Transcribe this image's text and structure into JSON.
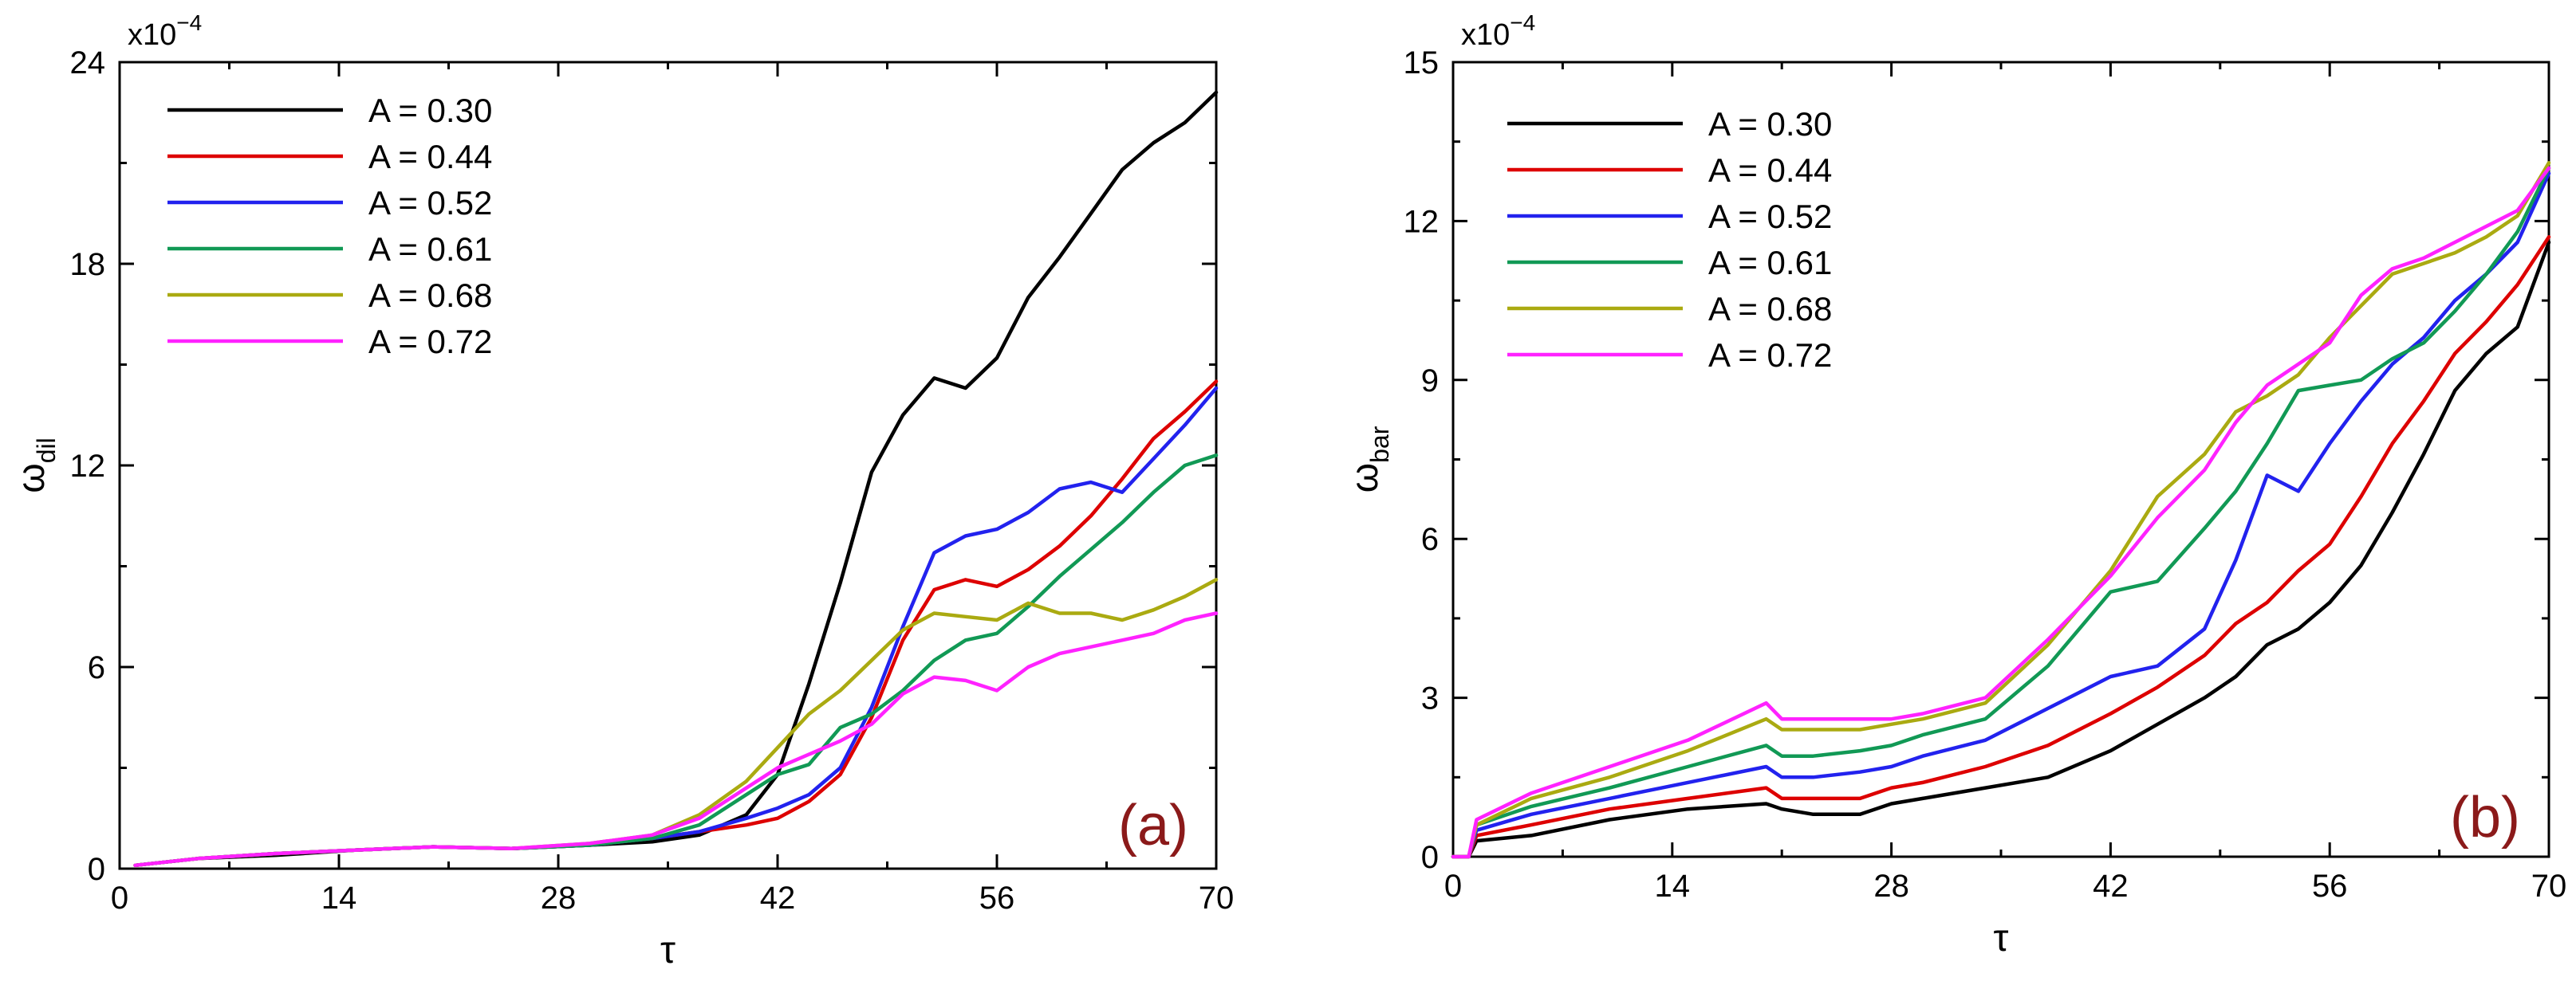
{
  "chart_data": [
    {
      "type": "line",
      "panel_label": "(a)",
      "xlabel": "τ",
      "ylabel_base": "ω",
      "ylabel_sub": "dil",
      "multiplier_base": "x10",
      "multiplier_exp": "−4",
      "xlim": [
        0,
        70
      ],
      "ylim": [
        0,
        24
      ],
      "xticks": [
        0,
        14,
        28,
        42,
        56,
        70
      ],
      "yticks": [
        0,
        6,
        12,
        18,
        24
      ],
      "series": [
        {
          "name": "A = 0.30",
          "color": "#000000",
          "x": [
            1,
            5,
            10,
            15,
            20,
            25,
            30,
            34,
            37,
            40,
            42,
            44,
            46,
            48,
            50,
            52,
            54,
            56,
            58,
            60,
            62,
            64,
            66,
            68,
            70
          ],
          "y": [
            0.1,
            0.3,
            0.4,
            0.55,
            0.65,
            0.6,
            0.7,
            0.8,
            1.0,
            1.6,
            2.8,
            5.5,
            8.5,
            11.8,
            13.5,
            14.6,
            14.3,
            15.2,
            17.0,
            18.2,
            19.5,
            20.8,
            21.6,
            22.2,
            23.1
          ]
        },
        {
          "name": "A = 0.44",
          "color": "#dd0000",
          "x": [
            1,
            5,
            10,
            15,
            20,
            25,
            30,
            34,
            37,
            40,
            42,
            44,
            46,
            48,
            50,
            52,
            54,
            56,
            58,
            60,
            62,
            64,
            66,
            68,
            70
          ],
          "y": [
            0.1,
            0.3,
            0.45,
            0.55,
            0.65,
            0.6,
            0.7,
            0.9,
            1.1,
            1.3,
            1.5,
            2.0,
            2.8,
            4.5,
            6.8,
            8.3,
            8.6,
            8.4,
            8.9,
            9.6,
            10.5,
            11.6,
            12.8,
            13.6,
            14.5
          ]
        },
        {
          "name": "A = 0.52",
          "color": "#2222ee",
          "x": [
            1,
            5,
            10,
            15,
            20,
            25,
            30,
            34,
            37,
            40,
            42,
            44,
            46,
            48,
            50,
            52,
            54,
            56,
            58,
            60,
            62,
            64,
            66,
            68,
            70
          ],
          "y": [
            0.1,
            0.3,
            0.45,
            0.55,
            0.65,
            0.6,
            0.7,
            0.9,
            1.1,
            1.5,
            1.8,
            2.2,
            3.0,
            4.8,
            7.2,
            9.4,
            9.9,
            10.1,
            10.6,
            11.3,
            11.5,
            11.2,
            12.2,
            13.2,
            14.3
          ]
        },
        {
          "name": "A = 0.61",
          "color": "#119955",
          "x": [
            1,
            5,
            10,
            15,
            20,
            25,
            30,
            34,
            37,
            40,
            42,
            44,
            46,
            48,
            50,
            52,
            54,
            56,
            58,
            60,
            62,
            64,
            66,
            68,
            70
          ],
          "y": [
            0.1,
            0.3,
            0.45,
            0.55,
            0.65,
            0.6,
            0.7,
            0.9,
            1.3,
            2.2,
            2.8,
            3.1,
            4.2,
            4.6,
            5.3,
            6.2,
            6.8,
            7.0,
            7.8,
            8.7,
            9.5,
            10.3,
            11.2,
            12.0,
            12.3
          ]
        },
        {
          "name": "A = 0.68",
          "color": "#aaaa11",
          "x": [
            1,
            5,
            10,
            15,
            20,
            25,
            30,
            34,
            37,
            40,
            42,
            44,
            46,
            48,
            50,
            52,
            54,
            56,
            58,
            60,
            62,
            64,
            66,
            68,
            70
          ],
          "y": [
            0.1,
            0.3,
            0.45,
            0.55,
            0.65,
            0.6,
            0.75,
            1.0,
            1.6,
            2.6,
            3.6,
            4.6,
            5.3,
            6.2,
            7.1,
            7.6,
            7.5,
            7.4,
            7.9,
            7.6,
            7.6,
            7.4,
            7.7,
            8.1,
            8.6
          ]
        },
        {
          "name": "A = 0.72",
          "color": "#ff22ff",
          "x": [
            1,
            5,
            10,
            15,
            20,
            25,
            30,
            34,
            37,
            40,
            42,
            44,
            46,
            48,
            50,
            52,
            54,
            56,
            58,
            60,
            62,
            64,
            66,
            68,
            70
          ],
          "y": [
            0.1,
            0.3,
            0.45,
            0.55,
            0.65,
            0.6,
            0.75,
            1.0,
            1.5,
            2.4,
            3.0,
            3.4,
            3.8,
            4.3,
            5.2,
            5.7,
            5.6,
            5.3,
            6.0,
            6.4,
            6.6,
            6.8,
            7.0,
            7.4,
            7.6
          ]
        }
      ]
    },
    {
      "type": "line",
      "panel_label": "(b)",
      "xlabel": "τ",
      "ylabel_base": "ω",
      "ylabel_sub": "bar",
      "multiplier_base": "x10",
      "multiplier_exp": "−4",
      "xlim": [
        0,
        70
      ],
      "ylim": [
        0,
        15
      ],
      "xticks": [
        0,
        14,
        28,
        42,
        56,
        70
      ],
      "yticks": [
        0,
        3,
        6,
        9,
        12,
        15
      ],
      "series": [
        {
          "name": "A = 0.30",
          "color": "#000000",
          "x": [
            0,
            1,
            1.5,
            5,
            10,
            15,
            20,
            21,
            23,
            26,
            28,
            30,
            34,
            38,
            42,
            45,
            48,
            50,
            52,
            54,
            56,
            58,
            60,
            62,
            64,
            66,
            68,
            70
          ],
          "y": [
            0,
            0,
            0.3,
            0.4,
            0.7,
            0.9,
            1.0,
            0.9,
            0.8,
            0.8,
            1.0,
            1.1,
            1.3,
            1.5,
            2.0,
            2.5,
            3.0,
            3.4,
            4.0,
            4.3,
            4.8,
            5.5,
            6.5,
            7.6,
            8.8,
            9.5,
            10.0,
            11.6
          ]
        },
        {
          "name": "A = 0.44",
          "color": "#dd0000",
          "x": [
            0,
            1,
            1.5,
            5,
            10,
            15,
            20,
            21,
            23,
            26,
            28,
            30,
            34,
            38,
            42,
            45,
            48,
            50,
            52,
            54,
            56,
            58,
            60,
            62,
            64,
            66,
            68,
            70
          ],
          "y": [
            0,
            0,
            0.4,
            0.6,
            0.9,
            1.1,
            1.3,
            1.1,
            1.1,
            1.1,
            1.3,
            1.4,
            1.7,
            2.1,
            2.7,
            3.2,
            3.8,
            4.4,
            4.8,
            5.4,
            5.9,
            6.8,
            7.8,
            8.6,
            9.5,
            10.1,
            10.8,
            11.7
          ]
        },
        {
          "name": "A = 0.52",
          "color": "#2222ee",
          "x": [
            0,
            1,
            1.5,
            5,
            10,
            15,
            20,
            21,
            23,
            26,
            28,
            30,
            34,
            38,
            42,
            45,
            48,
            50,
            52,
            54,
            56,
            58,
            60,
            62,
            64,
            66,
            68,
            70
          ],
          "y": [
            0,
            0,
            0.5,
            0.8,
            1.1,
            1.4,
            1.7,
            1.5,
            1.5,
            1.6,
            1.7,
            1.9,
            2.2,
            2.8,
            3.4,
            3.6,
            4.3,
            5.6,
            7.2,
            6.9,
            7.8,
            8.6,
            9.3,
            9.8,
            10.5,
            11.0,
            11.6,
            12.9
          ]
        },
        {
          "name": "A = 0.61",
          "color": "#119955",
          "x": [
            0,
            1,
            1.5,
            5,
            10,
            15,
            20,
            21,
            23,
            26,
            28,
            30,
            34,
            38,
            42,
            45,
            48,
            50,
            52,
            54,
            56,
            58,
            60,
            62,
            64,
            66,
            68,
            70
          ],
          "y": [
            0,
            0,
            0.6,
            0.95,
            1.3,
            1.7,
            2.1,
            1.9,
            1.9,
            2.0,
            2.1,
            2.3,
            2.6,
            3.6,
            5.0,
            5.2,
            6.2,
            6.9,
            7.8,
            8.8,
            8.9,
            9.0,
            9.4,
            9.7,
            10.3,
            11.0,
            11.8,
            13.0
          ]
        },
        {
          "name": "A = 0.68",
          "color": "#aaaa11",
          "x": [
            0,
            1,
            1.5,
            5,
            10,
            15,
            20,
            21,
            23,
            26,
            28,
            30,
            34,
            38,
            42,
            45,
            48,
            50,
            52,
            54,
            56,
            58,
            60,
            62,
            64,
            66,
            68,
            70
          ],
          "y": [
            0,
            0,
            0.6,
            1.1,
            1.5,
            2.0,
            2.6,
            2.4,
            2.4,
            2.4,
            2.5,
            2.6,
            2.9,
            4.0,
            5.4,
            6.8,
            7.6,
            8.4,
            8.7,
            9.1,
            9.8,
            10.4,
            11.0,
            11.2,
            11.4,
            11.7,
            12.1,
            13.1
          ]
        },
        {
          "name": "A = 0.72",
          "color": "#ff22ff",
          "x": [
            0,
            1,
            1.5,
            5,
            10,
            15,
            20,
            21,
            23,
            26,
            28,
            30,
            34,
            38,
            42,
            45,
            48,
            50,
            52,
            54,
            56,
            58,
            60,
            62,
            64,
            66,
            68,
            70
          ],
          "y": [
            0,
            0,
            0.7,
            1.2,
            1.7,
            2.2,
            2.9,
            2.6,
            2.6,
            2.6,
            2.6,
            2.7,
            3.0,
            4.1,
            5.3,
            6.4,
            7.3,
            8.2,
            8.9,
            9.3,
            9.7,
            10.6,
            11.1,
            11.3,
            11.6,
            11.9,
            12.2,
            13.0
          ]
        }
      ]
    }
  ]
}
